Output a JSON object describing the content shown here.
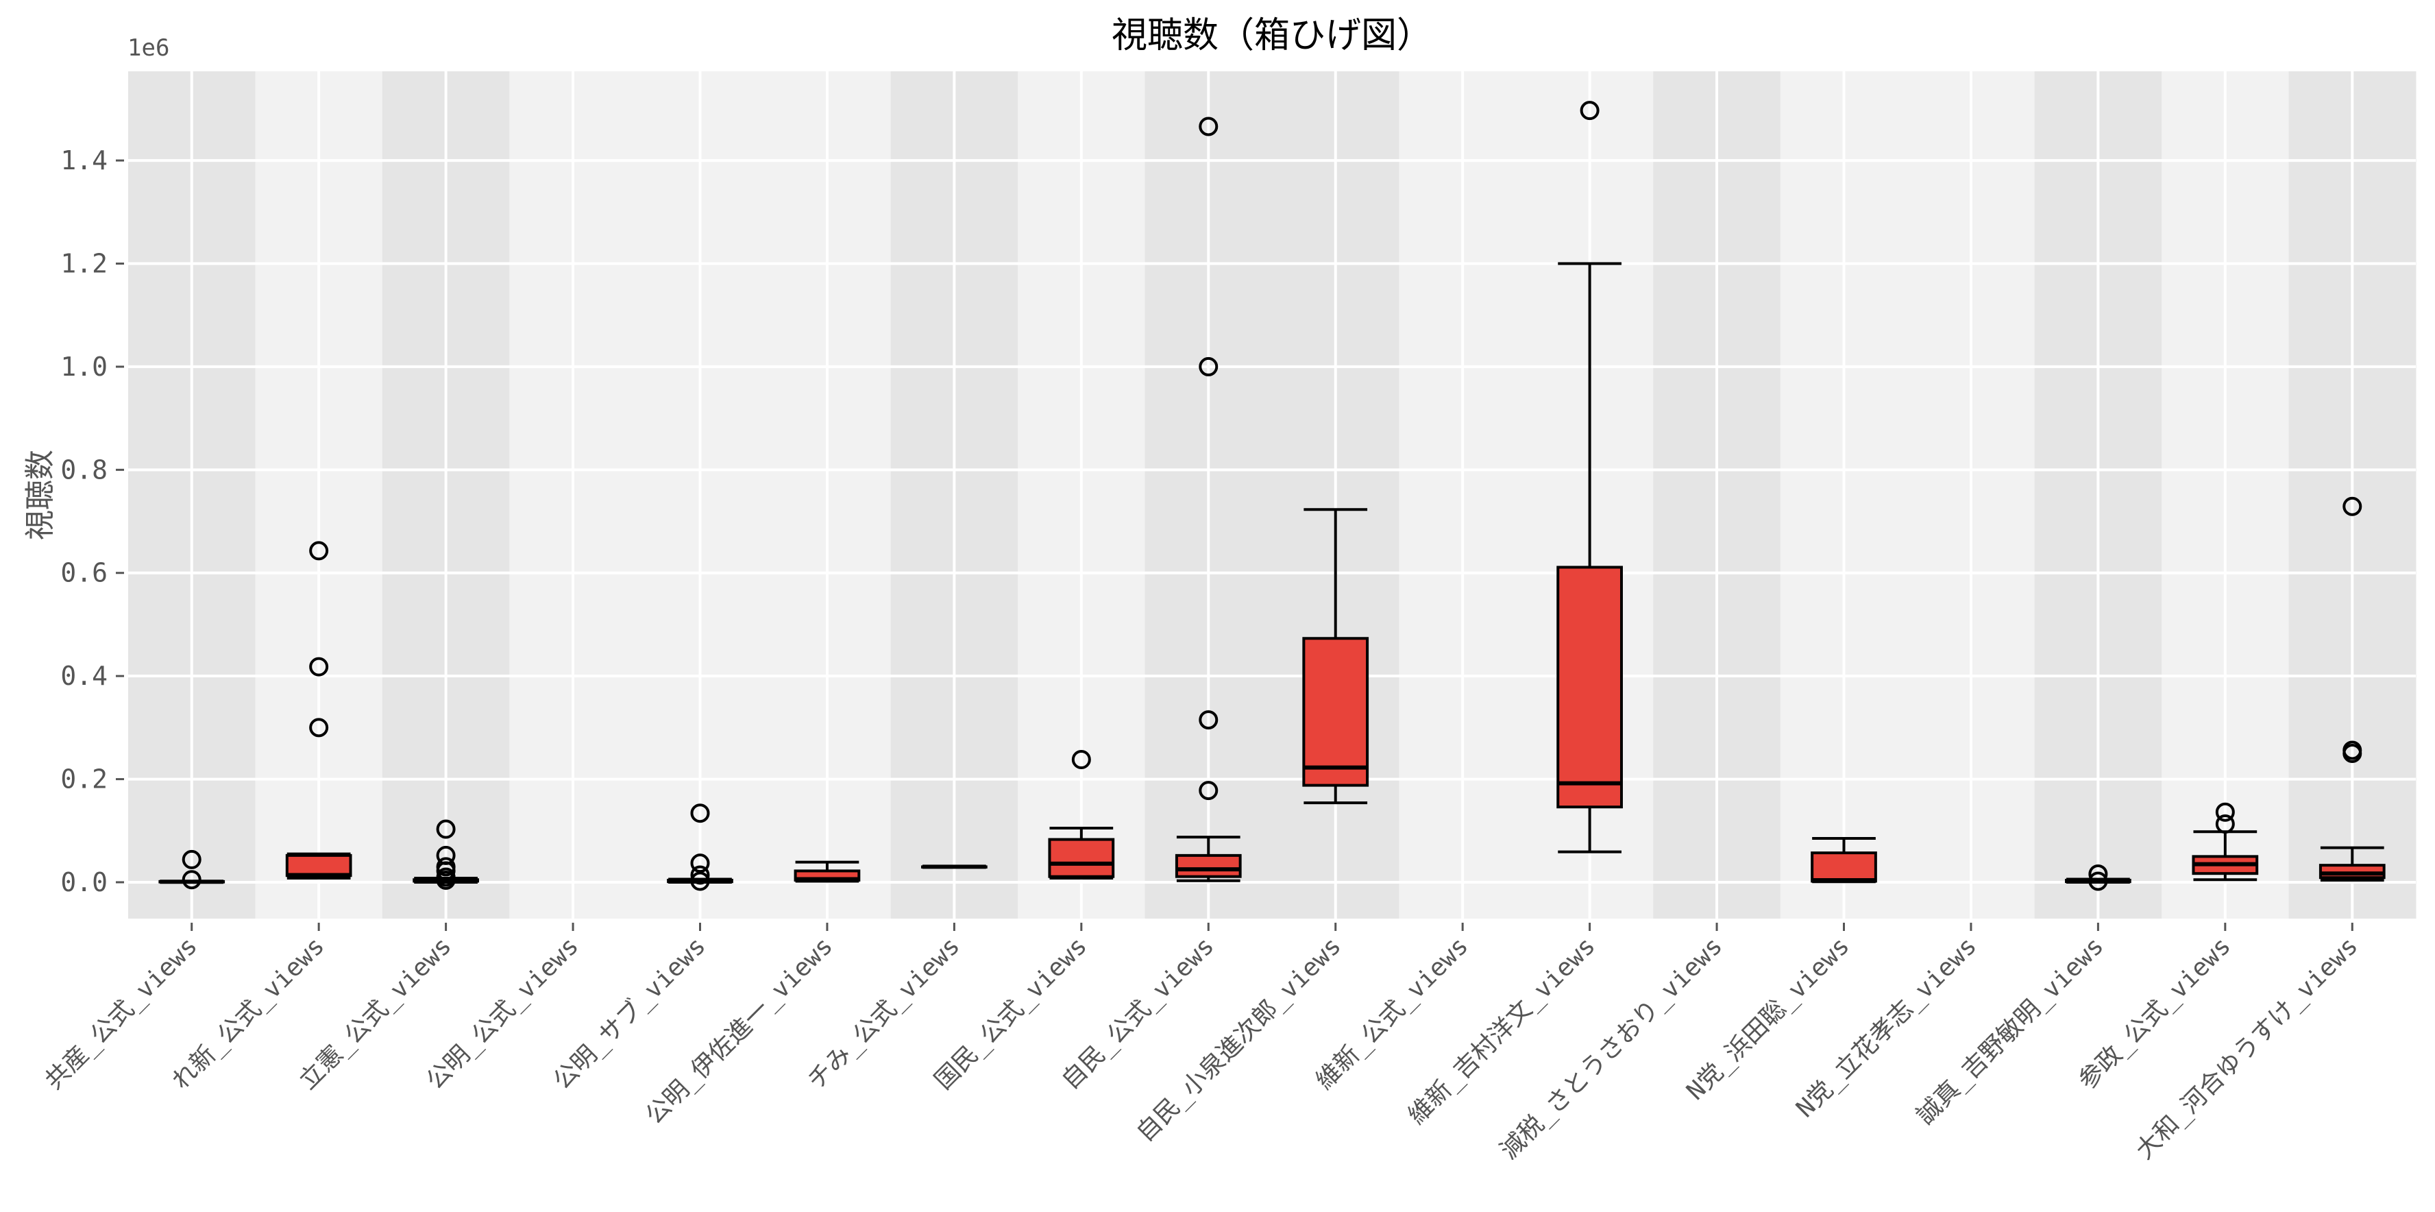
{
  "chart_data": {
    "type": "box",
    "title": "視聴数（箱ひげ図）",
    "xlabel": "",
    "ylabel": "視聴数",
    "y_offset_label": "1e6",
    "y_scale": 1000000,
    "ylim": [
      -0.0705,
      1.573
    ],
    "yticks": [
      0.0,
      0.2,
      0.4,
      0.6,
      0.8,
      1.0,
      1.2,
      1.4
    ],
    "ytick_labels": [
      "0.0",
      "0.2",
      "0.4",
      "0.6",
      "0.8",
      "1.0",
      "1.2",
      "1.4"
    ],
    "grid": true,
    "legend": null,
    "box_color": "#E8433A",
    "box_edge_color": "#000000",
    "background_dark": "#E5E5E5",
    "background_light": "#F2F2F2",
    "grid_color": "#FFFFFF",
    "categories": [
      "共産_公式_views",
      "れ新_公式_views",
      "立憲_公式_views",
      "公明_公式_views",
      "公明_サブ_views",
      "公明_伊佐進一_views",
      "チみ_公式_views",
      "国民_公式_views",
      "自民_公式_views",
      "自民_小泉進次郎_views",
      "維新_公式_views",
      "維新_吉村洋文_views",
      "減税_さとうさおり_views",
      "N党_浜田聡_views",
      "N党_立花孝志_views",
      "誠真_吉野敏明_views",
      "参政_公式_views",
      "大和_河合ゆうすけ_views"
    ],
    "band_shading": [
      "dark",
      "light",
      "dark",
      "light",
      "light",
      "light",
      "dark",
      "light",
      "dark",
      "dark",
      "light",
      "light",
      "dark",
      "light",
      "light",
      "dark",
      "light",
      "dark"
    ],
    "boxes": [
      {
        "name": "共産_公式_views",
        "whislo": 0.0,
        "q1": 0.0005,
        "med": 0.001,
        "q3": 0.0015,
        "whishi": 0.002,
        "fliers": [
          0.005,
          0.044
        ]
      },
      {
        "name": "れ新_公式_views",
        "whislo": 0.008,
        "q1": 0.013,
        "med": 0.014,
        "q3": 0.052,
        "whishi": 0.055,
        "fliers": [
          0.3,
          0.418,
          0.643
        ]
      },
      {
        "name": "立憲_公式_views",
        "whislo": 0.0,
        "q1": 0.002,
        "med": 0.003,
        "q3": 0.005,
        "whishi": 0.008,
        "fliers": [
          0.004,
          0.01,
          0.022,
          0.03,
          0.052,
          0.103
        ]
      },
      {
        "name": "公明_公式_views",
        "whislo": null,
        "q1": null,
        "med": null,
        "q3": null,
        "whishi": null,
        "fliers": []
      },
      {
        "name": "公明_サブ_views",
        "whislo": 0.0,
        "q1": 0.001,
        "med": 0.002,
        "q3": 0.004,
        "whishi": 0.006,
        "fliers": [
          0.002,
          0.014,
          0.037,
          0.134
        ]
      },
      {
        "name": "公明_伊佐進一_views",
        "whislo": 0.002,
        "q1": 0.004,
        "med": 0.006,
        "q3": 0.022,
        "whishi": 0.039,
        "fliers": []
      },
      {
        "name": "チみ_公式_views",
        "whislo": 0.03,
        "q1": 0.03,
        "med": 0.03,
        "q3": 0.03,
        "whishi": 0.03,
        "fliers": []
      },
      {
        "name": "国民_公式_views",
        "whislo": 0.008,
        "q1": 0.011,
        "med": 0.036,
        "q3": 0.083,
        "whishi": 0.105,
        "fliers": [
          0.238
        ]
      },
      {
        "name": "自民_公式_views",
        "whislo": 0.003,
        "q1": 0.011,
        "med": 0.025,
        "q3": 0.052,
        "whishi": 0.0875,
        "fliers": [
          0.178,
          0.315,
          1.0,
          1.466
        ]
      },
      {
        "name": "自民_小泉進次郎_views",
        "whislo": 0.154,
        "q1": 0.188,
        "med": 0.2225,
        "q3": 0.473,
        "whishi": 0.723,
        "fliers": []
      },
      {
        "name": "維新_公式_views",
        "whislo": null,
        "q1": null,
        "med": null,
        "q3": null,
        "whishi": null,
        "fliers": []
      },
      {
        "name": "維新_吉村洋文_views",
        "whislo": 0.059,
        "q1": 0.146,
        "med": 0.192,
        "q3": 0.611,
        "whishi": 1.2,
        "fliers": [
          1.497
        ]
      },
      {
        "name": "減税_さとうさおり_views",
        "whislo": null,
        "q1": null,
        "med": null,
        "q3": null,
        "whishi": null,
        "fliers": []
      },
      {
        "name": "N党_浜田聡_views",
        "whislo": 0.001,
        "q1": 0.002,
        "med": 0.004,
        "q3": 0.057,
        "whishi": 0.085,
        "fliers": []
      },
      {
        "name": "N党_立花孝志_views",
        "whislo": null,
        "q1": null,
        "med": null,
        "q3": null,
        "whishi": null,
        "fliers": []
      },
      {
        "name": "誠真_吉野敏明_views",
        "whislo": 0.0,
        "q1": 0.001,
        "med": 0.002,
        "q3": 0.004,
        "whishi": 0.006,
        "fliers": [
          0.002,
          0.016
        ]
      },
      {
        "name": "参政_公式_views",
        "whislo": 0.005,
        "q1": 0.017,
        "med": 0.035,
        "q3": 0.05,
        "whishi": 0.098,
        "fliers": [
          0.113,
          0.136
        ]
      },
      {
        "name": "大和_河合ゆうすけ_views",
        "whislo": 0.004,
        "q1": 0.009,
        "med": 0.017,
        "q3": 0.033,
        "whishi": 0.067,
        "fliers": [
          0.25,
          0.256,
          0.729
        ]
      }
    ]
  }
}
